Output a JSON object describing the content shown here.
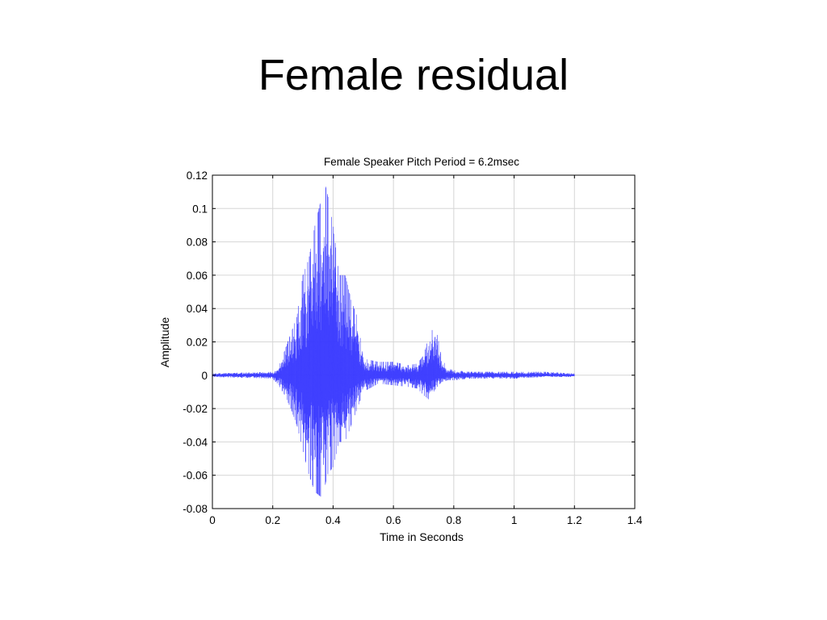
{
  "slide": {
    "title": "Female residual"
  },
  "chart_data": {
    "type": "line",
    "title": "Female Speaker Pitch Period = 6.2msec",
    "xlabel": "Time in Seconds",
    "ylabel": "Amplitude",
    "xlim": [
      0,
      1.4
    ],
    "ylim": [
      -0.08,
      0.12
    ],
    "xticks": [
      "0",
      "0.2",
      "0.4",
      "0.6",
      "0.8",
      "1",
      "1.2",
      "1.4"
    ],
    "yticks": [
      "0.12",
      "0.1",
      "0.08",
      "0.06",
      "0.04",
      "0.02",
      "0",
      "-0.02",
      "-0.04",
      "-0.06",
      "-0.08"
    ],
    "grid": true,
    "line_color": "#3b3bff",
    "series": [
      {
        "envelope": {
          "t": [
            0.0,
            0.2,
            0.22,
            0.24,
            0.26,
            0.28,
            0.3,
            0.32,
            0.34,
            0.36,
            0.37,
            0.38,
            0.4,
            0.42,
            0.44,
            0.46,
            0.48,
            0.5,
            0.55,
            0.6,
            0.65,
            0.68,
            0.7,
            0.72,
            0.74,
            0.76,
            0.78,
            0.8,
            0.85,
            0.9,
            1.0,
            1.1,
            1.2
          ],
          "pos": [
            0.001,
            0.002,
            0.005,
            0.015,
            0.025,
            0.035,
            0.06,
            0.07,
            0.09,
            0.105,
            0.117,
            0.11,
            0.09,
            0.06,
            0.06,
            0.045,
            0.035,
            0.01,
            0.008,
            0.008,
            0.006,
            0.007,
            0.012,
            0.025,
            0.03,
            0.01,
            0.004,
            0.003,
            0.002,
            0.002,
            0.002,
            0.002,
            0.001
          ],
          "neg": [
            -0.001,
            -0.002,
            -0.006,
            -0.012,
            -0.02,
            -0.03,
            -0.045,
            -0.06,
            -0.07,
            -0.073,
            -0.07,
            -0.06,
            -0.055,
            -0.04,
            -0.04,
            -0.03,
            -0.02,
            -0.01,
            -0.005,
            -0.006,
            -0.007,
            -0.008,
            -0.012,
            -0.015,
            -0.008,
            -0.004,
            -0.003,
            -0.003,
            -0.002,
            -0.002,
            -0.002,
            -0.001,
            -0.001
          ]
        }
      }
    ]
  }
}
